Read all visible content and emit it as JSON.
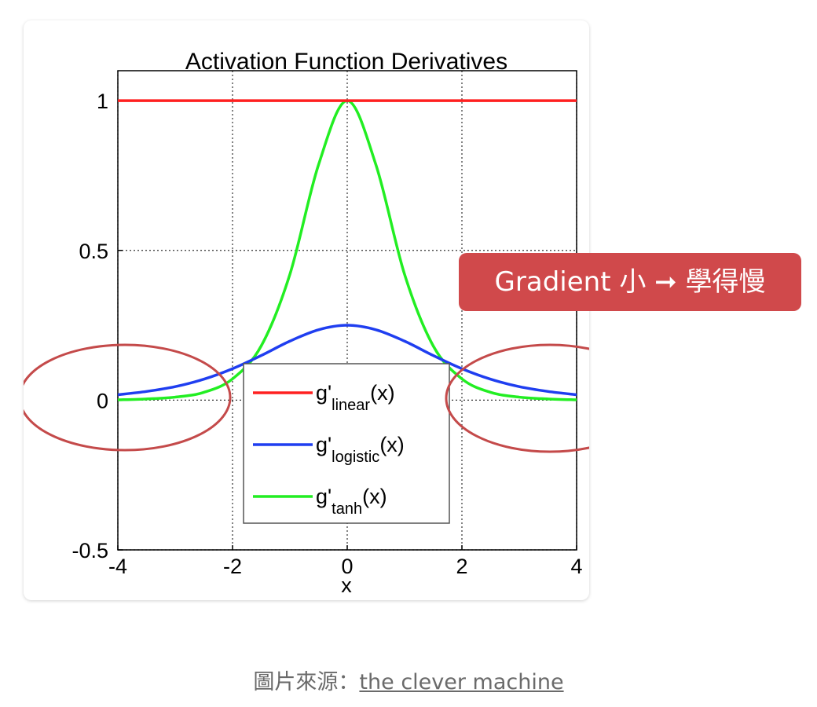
{
  "chart_data": {
    "type": "line",
    "title": "Activation Function Derivatives",
    "xlabel": "x",
    "ylabel": "",
    "xlim": [
      -4,
      4
    ],
    "ylim": [
      -0.5,
      1.1
    ],
    "x_ticks": [
      -4,
      -2,
      0,
      2,
      4
    ],
    "x_tick_labels": [
      "-4",
      "-2",
      "0",
      "2",
      "4"
    ],
    "y_ticks": [
      -0.5,
      0,
      0.5,
      1
    ],
    "y_tick_labels": [
      "-0.5",
      "0",
      "0.5",
      "1"
    ],
    "grid": true,
    "legend_position": "bottom-center",
    "x": [
      -4,
      -3.5,
      -3,
      -2.5,
      -2,
      -1.5,
      -1,
      -0.5,
      0,
      0.5,
      1,
      1.5,
      2,
      2.5,
      3,
      3.5,
      4
    ],
    "series": [
      {
        "name": "linear",
        "legend_prefix": "g'",
        "legend_sub": "linear",
        "legend_suffix": "(x)",
        "color": "#ff2020",
        "values": [
          1,
          1,
          1,
          1,
          1,
          1,
          1,
          1,
          1,
          1,
          1,
          1,
          1,
          1,
          1,
          1,
          1
        ]
      },
      {
        "name": "logistic",
        "legend_prefix": "g'",
        "legend_sub": "logistic",
        "legend_suffix": "(x)",
        "color": "#1f3ef0",
        "values": [
          0.018,
          0.029,
          0.045,
          0.07,
          0.105,
          0.149,
          0.197,
          0.235,
          0.25,
          0.235,
          0.197,
          0.149,
          0.105,
          0.07,
          0.045,
          0.029,
          0.018
        ]
      },
      {
        "name": "tanh",
        "legend_prefix": "g'",
        "legend_sub": "tanh",
        "legend_suffix": "(x)",
        "color": "#22ee22",
        "values": [
          0.001,
          0.004,
          0.01,
          0.026,
          0.071,
          0.181,
          0.42,
          0.786,
          1,
          0.786,
          0.42,
          0.181,
          0.071,
          0.026,
          0.01,
          0.004,
          0.001
        ]
      }
    ]
  },
  "annotations": {
    "callout_text": "Gradient 小 ➞ 學得慢",
    "callout_color": "#d0494b",
    "highlight_color": "#c44a4a"
  },
  "caption": {
    "prefix": "圖片來源：",
    "link_text": "the clever machine"
  }
}
